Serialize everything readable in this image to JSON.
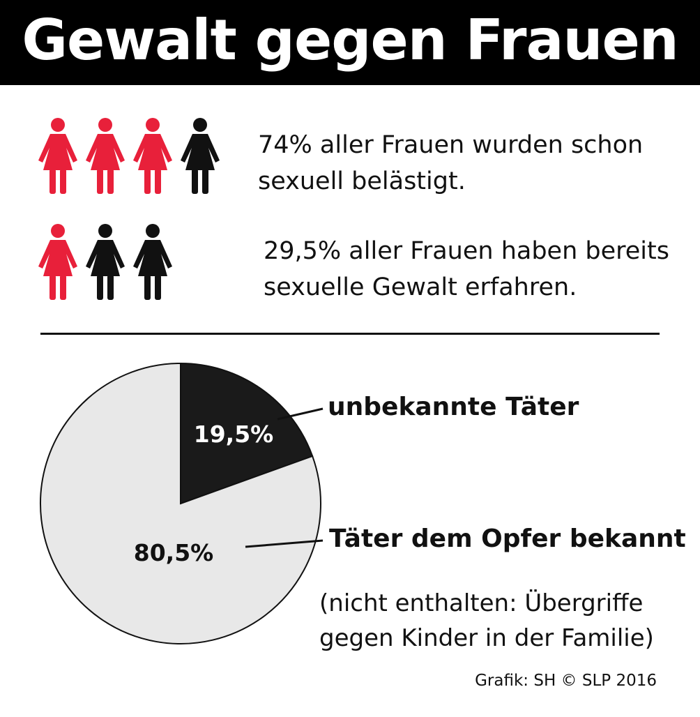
{
  "header": {
    "title": "Gewalt gegen Frauen"
  },
  "colors": {
    "highlight": "#e8203a",
    "dark": "#111111",
    "pie_light": "#e8e8e8",
    "header_bg": "#000000"
  },
  "facts": [
    {
      "icons": [
        "woman-icon-red",
        "woman-icon-red",
        "woman-icon-red",
        "woman-icon-black"
      ],
      "line1": "74% aller Frauen wurden schon",
      "line2": "sexuell belästigt."
    },
    {
      "icons": [
        "woman-icon-red",
        "woman-icon-black",
        "woman-icon-black"
      ],
      "line1": "29,5% aller Frauen haben bereits",
      "line2": "sexuelle Gewalt erfahren."
    }
  ],
  "chart_data": {
    "type": "pie",
    "title": "",
    "slices": [
      {
        "label": "unbekannte Täter",
        "value": 19.5,
        "value_label": "19,5%",
        "color": "#1a1a1a"
      },
      {
        "label": "Täter dem Opfer bekannt",
        "value": 80.5,
        "value_label": "80,5%",
        "color": "#e8e8e8"
      }
    ]
  },
  "note": {
    "line1": "(nicht enthalten: Übergriffe",
    "line2": "gegen Kinder in der Familie)"
  },
  "credit": "Grafik: SH  © SLP 2016"
}
